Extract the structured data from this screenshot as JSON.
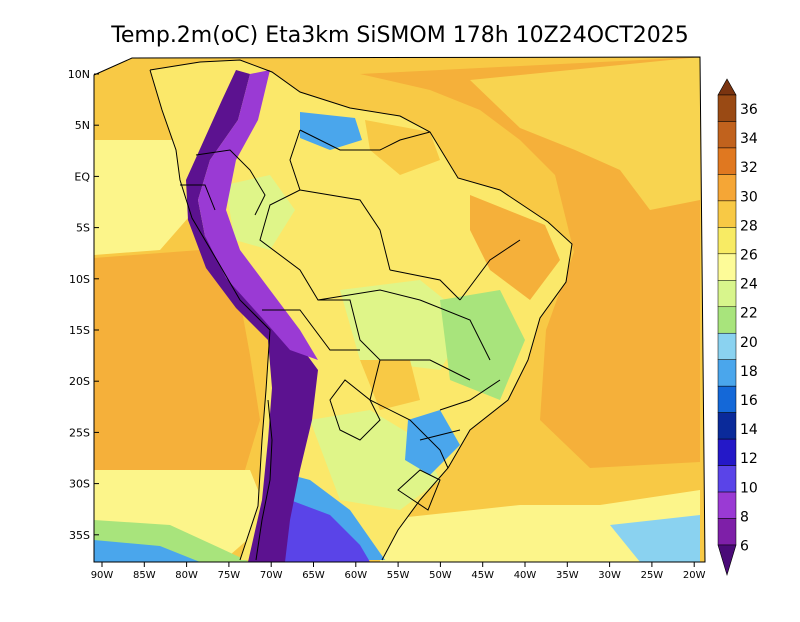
{
  "title": "Temp.2m(oC) Eta3km SiSMOM 178h 10Z24OCT2025",
  "lat_labels": [
    "10N",
    "5N",
    "EQ",
    "5S",
    "10S",
    "15S",
    "20S",
    "25S",
    "30S",
    "35S"
  ],
  "lon_labels": [
    "90W",
    "85W",
    "80W",
    "75W",
    "70W",
    "65W",
    "60W",
    "55W",
    "50W",
    "45W",
    "40W",
    "35W",
    "30W",
    "25W",
    "20W"
  ],
  "colorbar": {
    "labels": [
      "36",
      "34",
      "32",
      "30",
      "28",
      "26",
      "24",
      "22",
      "20",
      "18",
      "16",
      "14",
      "12",
      "10",
      "8",
      "6"
    ],
    "colors": [
      "#7a3410",
      "#9a4a14",
      "#c1621d",
      "#e07820",
      "#f5a636",
      "#f8c945",
      "#f8eb64",
      "#fdfb98",
      "#d8f58c",
      "#a8e47c",
      "#8ad2f0",
      "#4aa6ec",
      "#1468d8",
      "#0a2a9a",
      "#2418c8",
      "#5a44e8",
      "#9a3ad4",
      "#7e1fa8",
      "#4a0a78"
    ]
  },
  "colors": {
    "ocean_warm": "#f5b03a",
    "ocean_mid": "#f8d450",
    "ocean_cool": "#fcf58a",
    "land_warm": "#fbe86a",
    "land_cool": "#dff589",
    "andes": "#5c1290",
    "south_cold": "#3d8ee8",
    "border": "#000000"
  }
}
